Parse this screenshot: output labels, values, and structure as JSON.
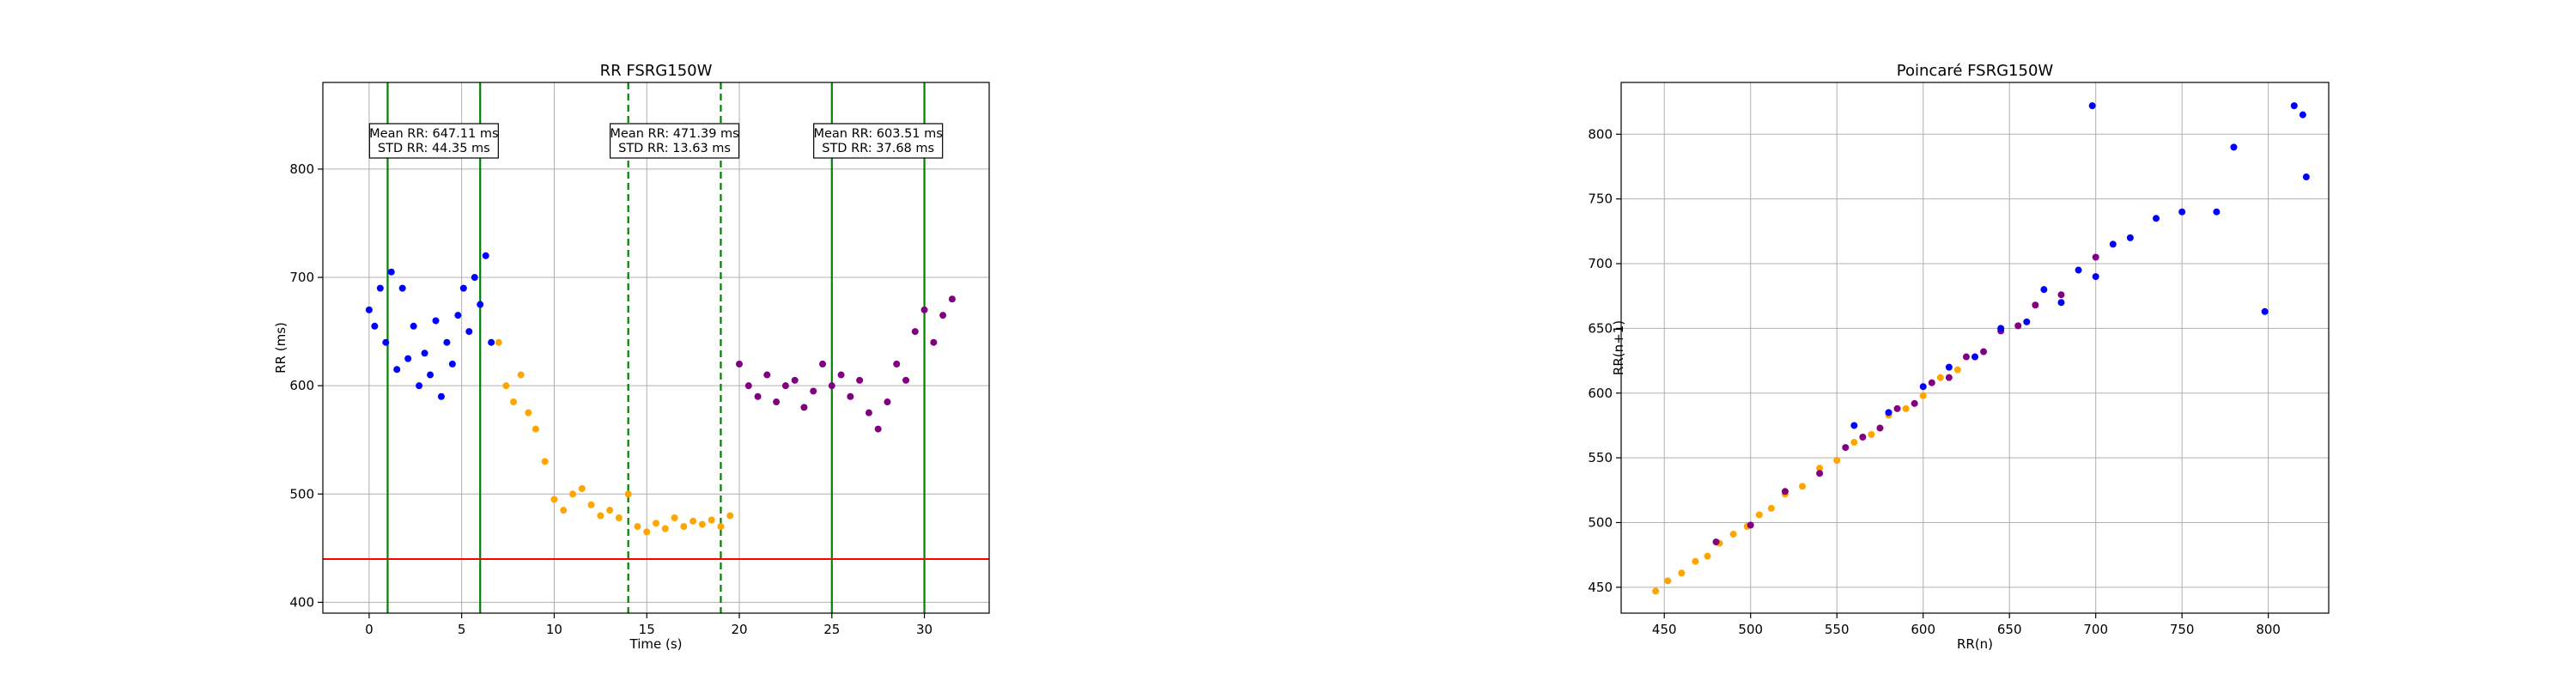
{
  "chart_data": [
    {
      "type": "scatter",
      "title": "RR FSRG150W",
      "xlabel": "Time (s)",
      "ylabel": "RR (ms)",
      "xlim": [
        -2.5,
        33.5
      ],
      "ylim": [
        390,
        880
      ],
      "xticks": [
        0,
        5,
        10,
        15,
        20,
        25,
        30
      ],
      "yticks": [
        400,
        500,
        600,
        700,
        800
      ],
      "grid": true,
      "threshold_line": {
        "y": 440,
        "color": "#ff0000"
      },
      "vlines": [
        {
          "x": 1,
          "style": "solid",
          "color": "#008000"
        },
        {
          "x": 6,
          "style": "solid",
          "color": "#008000"
        },
        {
          "x": 14,
          "style": "dashed",
          "color": "#008000"
        },
        {
          "x": 19,
          "style": "dashed",
          "color": "#008000"
        },
        {
          "x": 25,
          "style": "solid",
          "color": "#008000"
        },
        {
          "x": 30,
          "style": "solid",
          "color": "#008000"
        }
      ],
      "annotations": [
        {
          "x": 3.5,
          "line1": "Mean RR: 647.11 ms",
          "line2": "STD RR: 44.35 ms"
        },
        {
          "x": 16.5,
          "line1": "Mean RR: 471.39 ms",
          "line2": "STD RR: 13.63 ms"
        },
        {
          "x": 27.5,
          "line1": "Mean RR: 603.51 ms",
          "line2": "STD RR: 37.68 ms"
        }
      ],
      "series": [
        {
          "color": "#0000ff",
          "x": [
            0,
            0.3,
            0.6,
            0.9,
            1.2,
            1.5,
            1.8,
            2.1,
            2.4,
            2.7,
            3.0,
            3.3,
            3.6,
            3.9,
            4.2,
            4.5,
            4.8,
            5.1,
            5.4,
            5.7,
            6.0,
            6.3,
            6.6
          ],
          "y": [
            670,
            655,
            690,
            640,
            705,
            615,
            690,
            625,
            655,
            600,
            630,
            610,
            660,
            590,
            640,
            620,
            665,
            690,
            650,
            700,
            675,
            720,
            640
          ]
        },
        {
          "color": "#ffa500",
          "x": [
            7.0,
            7.4,
            7.8,
            8.2,
            8.6,
            9.0,
            9.5,
            10.0,
            10.5,
            11.0,
            11.5,
            12.0,
            12.5,
            13.0,
            13.5,
            14.0,
            14.5,
            15.0,
            15.5,
            16.0,
            16.5,
            17.0,
            17.5,
            18.0,
            18.5,
            19.0,
            19.5
          ],
          "y": [
            640,
            600,
            585,
            610,
            575,
            560,
            530,
            495,
            485,
            500,
            505,
            490,
            480,
            485,
            478,
            500,
            470,
            465,
            473,
            468,
            478,
            470,
            475,
            472,
            476,
            470,
            480
          ]
        },
        {
          "color": "#800080",
          "x": [
            20.0,
            20.5,
            21.0,
            21.5,
            22.0,
            22.5,
            23.0,
            23.5,
            24.0,
            24.5,
            25.0,
            25.5,
            26.0,
            26.5,
            27.0,
            27.5,
            28.0,
            28.5,
            29.0,
            29.5,
            30.0,
            30.5,
            31.0,
            31.5
          ],
          "y": [
            620,
            600,
            590,
            610,
            585,
            600,
            605,
            580,
            595,
            620,
            600,
            610,
            590,
            605,
            575,
            560,
            585,
            620,
            605,
            650,
            670,
            640,
            665,
            680
          ]
        }
      ]
    },
    {
      "type": "scatter",
      "title": "Poincaré FSRG150W",
      "xlabel": "RR(n)",
      "ylabel": "RR(n+1)",
      "xlim": [
        425,
        835
      ],
      "ylim": [
        430,
        840
      ],
      "xticks": [
        450,
        500,
        550,
        600,
        650,
        700,
        750,
        800
      ],
      "yticks": [
        450,
        500,
        550,
        600,
        650,
        700,
        750,
        800
      ],
      "grid": true,
      "series": [
        {
          "color": "#ffa500",
          "x": [
            445,
            452,
            460,
            468,
            475,
            482,
            490,
            498,
            505,
            512,
            520,
            530,
            540,
            550,
            560,
            570,
            580,
            590,
            600,
            610,
            620,
            630
          ],
          "y": [
            447,
            455,
            461,
            470,
            474,
            484,
            491,
            497,
            506,
            511,
            522,
            528,
            542,
            548,
            562,
            568,
            583,
            588,
            598,
            612,
            618,
            628
          ]
        },
        {
          "color": "#800080",
          "x": [
            480,
            500,
            520,
            540,
            555,
            565,
            575,
            585,
            595,
            605,
            615,
            625,
            635,
            645,
            655,
            665,
            680,
            700
          ],
          "y": [
            485,
            498,
            524,
            538,
            558,
            566,
            573,
            588,
            592,
            608,
            612,
            628,
            632,
            648,
            652,
            668,
            676,
            705
          ]
        },
        {
          "color": "#0000ff",
          "x": [
            560,
            580,
            600,
            615,
            630,
            645,
            660,
            670,
            680,
            690,
            700,
            710,
            720,
            735,
            750,
            770,
            780,
            798,
            815,
            820,
            822,
            698
          ],
          "y": [
            575,
            585,
            605,
            620,
            628,
            650,
            655,
            680,
            670,
            695,
            690,
            715,
            720,
            735,
            740,
            740,
            790,
            663,
            822,
            815,
            767,
            822
          ]
        }
      ]
    }
  ]
}
